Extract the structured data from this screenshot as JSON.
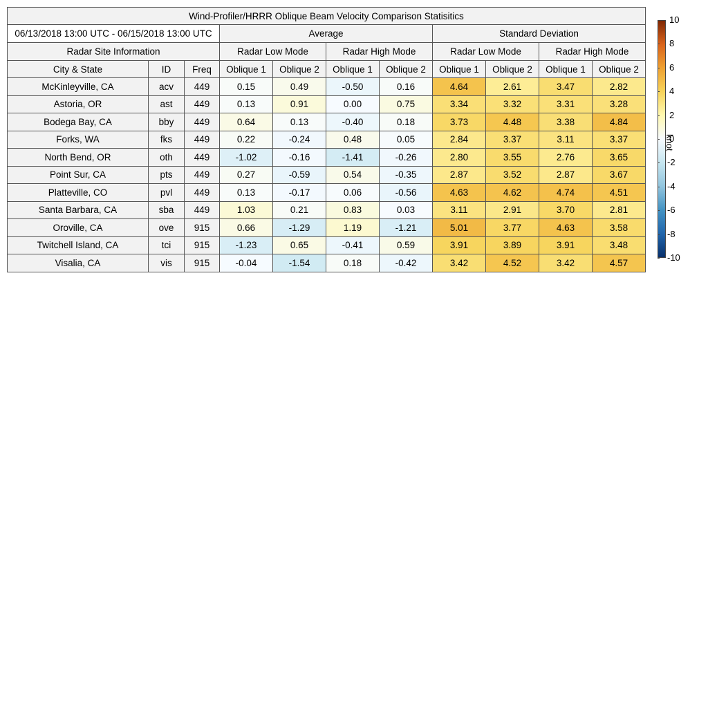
{
  "title": "Wind-Profiler/HRRR Oblique Beam Velocity Comparison Statisitics",
  "date_range": "06/13/2018 13:00 UTC - 06/15/2018 13:00 UTC",
  "headers": {
    "site_info": "Radar Site Information",
    "average": "Average",
    "std_dev": "Standard Deviation",
    "low_mode": "Radar Low Mode",
    "high_mode": "Radar High Mode",
    "city_state": "City & State",
    "id": "ID",
    "freq": "Freq",
    "oblique1": "Oblique 1",
    "oblique2": "Oblique 2"
  },
  "colorbar": {
    "unit": "knot",
    "min": -10,
    "max": 10,
    "ticks": [
      "10",
      "8",
      "6",
      "4",
      "2",
      "0",
      "-2",
      "-4",
      "-6",
      "-8",
      "-10"
    ],
    "colors": {
      "c_neg10": "#08306b",
      "c_neg8": "#2166ac",
      "c_neg6": "#4393c3",
      "c_neg4": "#92c5de",
      "c_neg2": "#c6e6f0",
      "c_0": "#f7fbff",
      "c_pos2": "#fff8b0",
      "c_pos4": "#f7d35a",
      "c_pos6": "#eea132",
      "c_pos8": "#d9631b",
      "c_pos10": "#7f2704"
    }
  },
  "chart_data": {
    "type": "table",
    "title": "Wind-Profiler/HRRR Oblique Beam Velocity Comparison Statisitics",
    "columns": [
      "City & State",
      "ID",
      "Freq",
      "Average Low Oblique 1",
      "Average Low Oblique 2",
      "Average High Oblique 1",
      "Average High Oblique 2",
      "Std Dev Low Oblique 1",
      "Std Dev Low Oblique 2",
      "Std Dev High Oblique 1",
      "Std Dev High Oblique 2"
    ],
    "rows": [
      {
        "city": "McKinleyville, CA",
        "id": "acv",
        "freq": "449",
        "avg": [
          "0.15",
          "0.49",
          "-0.50",
          "0.16"
        ],
        "std": [
          "4.64",
          "2.61",
          "3.47",
          "2.82"
        ]
      },
      {
        "city": "Astoria, OR",
        "id": "ast",
        "freq": "449",
        "avg": [
          "0.13",
          "0.91",
          "0.00",
          "0.75"
        ],
        "std": [
          "3.34",
          "3.32",
          "3.31",
          "3.28"
        ]
      },
      {
        "city": "Bodega Bay, CA",
        "id": "bby",
        "freq": "449",
        "avg": [
          "0.64",
          "0.13",
          "-0.40",
          "0.18"
        ],
        "std": [
          "3.73",
          "4.48",
          "3.38",
          "4.84"
        ]
      },
      {
        "city": "Forks, WA",
        "id": "fks",
        "freq": "449",
        "avg": [
          "0.22",
          "-0.24",
          "0.48",
          "0.05"
        ],
        "std": [
          "2.84",
          "3.37",
          "3.11",
          "3.37"
        ]
      },
      {
        "city": "North Bend, OR",
        "id": "oth",
        "freq": "449",
        "avg": [
          "-1.02",
          "-0.16",
          "-1.41",
          "-0.26"
        ],
        "std": [
          "2.80",
          "3.55",
          "2.76",
          "3.65"
        ]
      },
      {
        "city": "Point Sur, CA",
        "id": "pts",
        "freq": "449",
        "avg": [
          "0.27",
          "-0.59",
          "0.54",
          "-0.35"
        ],
        "std": [
          "2.87",
          "3.52",
          "2.87",
          "3.67"
        ]
      },
      {
        "city": "Platteville, CO",
        "id": "pvl",
        "freq": "449",
        "avg": [
          "0.13",
          "-0.17",
          "0.06",
          "-0.56"
        ],
        "std": [
          "4.63",
          "4.62",
          "4.74",
          "4.51"
        ]
      },
      {
        "city": "Santa Barbara, CA",
        "id": "sba",
        "freq": "449",
        "avg": [
          "1.03",
          "0.21",
          "0.83",
          "0.03"
        ],
        "std": [
          "3.11",
          "2.91",
          "3.70",
          "2.81"
        ]
      },
      {
        "city": "Oroville, CA",
        "id": "ove",
        "freq": "915",
        "avg": [
          "0.66",
          "-1.29",
          "1.19",
          "-1.21"
        ],
        "std": [
          "5.01",
          "3.77",
          "4.63",
          "3.58"
        ]
      },
      {
        "city": "Twitchell Island, CA",
        "id": "tci",
        "freq": "915",
        "avg": [
          "-1.23",
          "0.65",
          "-0.41",
          "0.59"
        ],
        "std": [
          "3.91",
          "3.89",
          "3.91",
          "3.48"
        ]
      },
      {
        "city": "Visalia, CA",
        "id": "vis",
        "freq": "915",
        "avg": [
          "-0.04",
          "-1.54",
          "0.18",
          "-0.42"
        ],
        "std": [
          "3.42",
          "4.52",
          "3.42",
          "4.57"
        ]
      }
    ]
  }
}
